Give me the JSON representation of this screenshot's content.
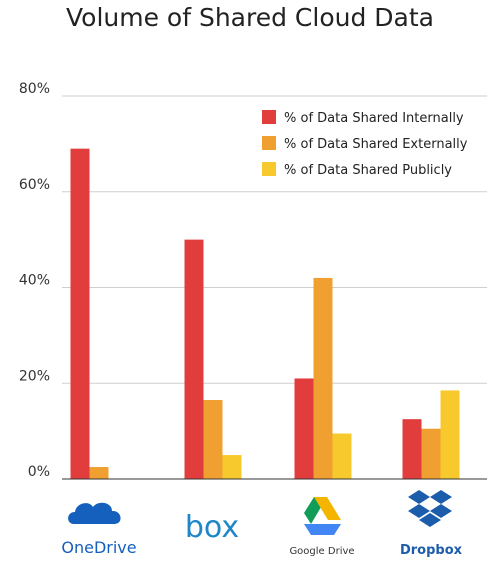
{
  "chart_data": {
    "type": "bar",
    "title": "Volume of Shared Cloud Data",
    "xlabel": "",
    "ylabel": "",
    "categories": [
      "OneDrive",
      "box",
      "Google Drive",
      "Dropbox"
    ],
    "ylim": [
      0,
      80
    ],
    "yticks": [
      0,
      20,
      40,
      60,
      80
    ],
    "ytick_labels": [
      "0%",
      "20%",
      "40%",
      "60%",
      "80%"
    ],
    "legend_position": "top-right",
    "grid": "horizontal",
    "series": [
      {
        "name": "% of Data Shared Internally",
        "color": "#e23d3d",
        "values": [
          69,
          50,
          21,
          12.5
        ]
      },
      {
        "name": "% of Data Shared Externally",
        "color": "#f0a030",
        "values": [
          2.5,
          16.5,
          42,
          10.5
        ]
      },
      {
        "name": "% of Data Shared Publicly",
        "color": "#f8c92c",
        "values": [
          0,
          5,
          9.5,
          18.5
        ]
      }
    ]
  },
  "logos": {
    "onedrive": {
      "label": "OneDrive",
      "icon": "cloud-icon",
      "color": "#1560bd"
    },
    "box": {
      "label": "box",
      "icon": "box-logo",
      "color": "#1f86c8"
    },
    "google_drive": {
      "label": "Google Drive",
      "icon": "google-drive-triangle-icon",
      "colors": [
        "#0f9d58",
        "#f4b400",
        "#4285f4"
      ]
    },
    "dropbox": {
      "label": "Dropbox",
      "icon": "dropbox-diamonds-icon",
      "color": "#1c5dab"
    }
  }
}
